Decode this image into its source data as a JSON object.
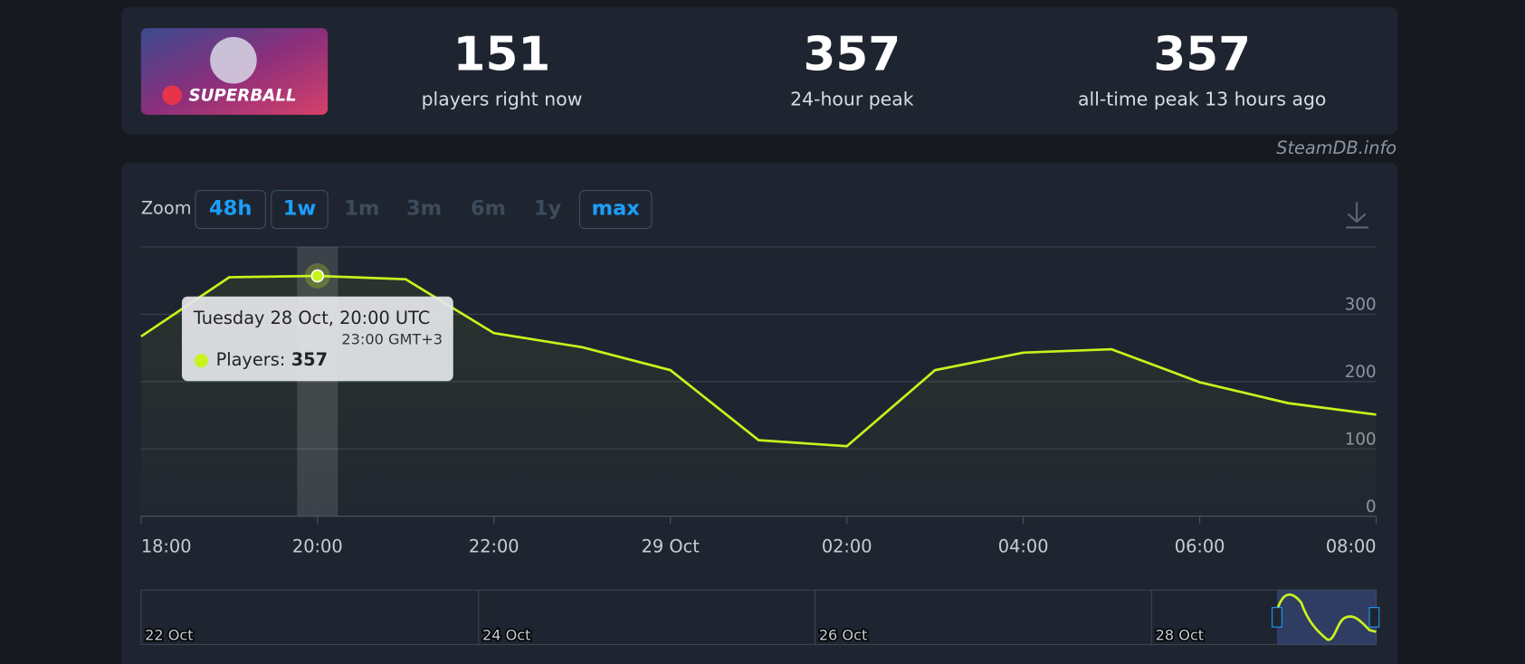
{
  "header": {
    "game_logo": "SUPERBALL",
    "stats": [
      {
        "value": 151,
        "label": "players right now"
      },
      {
        "value": 357,
        "label": "24-hour peak"
      },
      {
        "value": 357,
        "label": "all-time peak 13 hours ago"
      }
    ],
    "credit": "SteamDB.info"
  },
  "zoom": {
    "label": "Zoom",
    "options": [
      {
        "label": "48h",
        "active": true
      },
      {
        "label": "1w",
        "active": true
      },
      {
        "label": "1m",
        "active": false
      },
      {
        "label": "3m",
        "active": false
      },
      {
        "label": "6m",
        "active": false
      },
      {
        "label": "1y",
        "active": false
      },
      {
        "label": "max",
        "active": true
      }
    ]
  },
  "chart_data": {
    "type": "line",
    "categories": [
      "18:00",
      null,
      "20:00",
      null,
      "22:00",
      null,
      "29 Oct",
      null,
      "02:00",
      null,
      "04:00",
      null,
      "06:00",
      null,
      "08:00"
    ],
    "values": [
      267,
      355,
      357,
      352,
      272,
      251,
      217,
      113,
      104,
      217,
      243,
      248,
      199,
      168,
      151
    ],
    "color": "#c8f31d",
    "ylim": [
      0,
      400
    ],
    "yticks": [
      0,
      100,
      200,
      300
    ],
    "grid": true,
    "tooltip": {
      "date": "Tuesday 28 Oct, 20:00 UTC",
      "local_time": "23:00 GMT+3",
      "label": "Players:"
    }
  },
  "navigator": {
    "labels": [
      "22 Oct",
      "24 Oct",
      "26 Oct",
      "28 Oct"
    ]
  }
}
